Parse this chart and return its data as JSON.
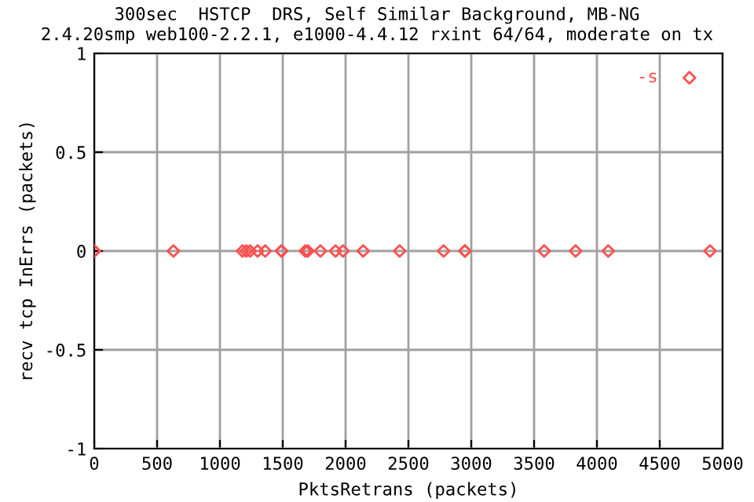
{
  "chart_data": {
    "type": "scatter",
    "title": "300sec  HSTCP  DRS, Self Similar Background, MB-NG",
    "subtitle": "2.4.20smp web100-2.2.1, e1000-4.4.12 rxint 64/64, moderate on tx",
    "xlabel": "PktsRetrans (packets)",
    "ylabel": "recv tcp InErrs (packets)",
    "series": [
      {
        "name": "-s",
        "color": "#ff5050",
        "x": [
          0,
          0,
          0,
          630,
          1180,
          1210,
          1240,
          1300,
          1360,
          1490,
          1490,
          1680,
          1700,
          1800,
          1920,
          1980,
          2140,
          2430,
          2780,
          2950,
          2950,
          3580,
          3830,
          4090,
          4900
        ],
        "values": [
          0,
          0,
          0,
          0,
          0,
          0,
          0,
          0,
          0,
          0,
          0,
          0,
          0,
          0,
          0,
          0,
          0,
          0,
          0,
          0,
          0,
          0,
          0,
          0,
          0
        ]
      }
    ],
    "xlim": [
      0,
      5000
    ],
    "xticks": [
      0,
      500,
      1000,
      1500,
      2000,
      2500,
      3000,
      3500,
      4000,
      4500,
      5000
    ],
    "ylim": [
      -1,
      1
    ],
    "yticks": [
      -1,
      -0.5,
      0,
      0.5,
      1
    ],
    "grid": true,
    "legend": "top right",
    "marker": "diamond"
  }
}
